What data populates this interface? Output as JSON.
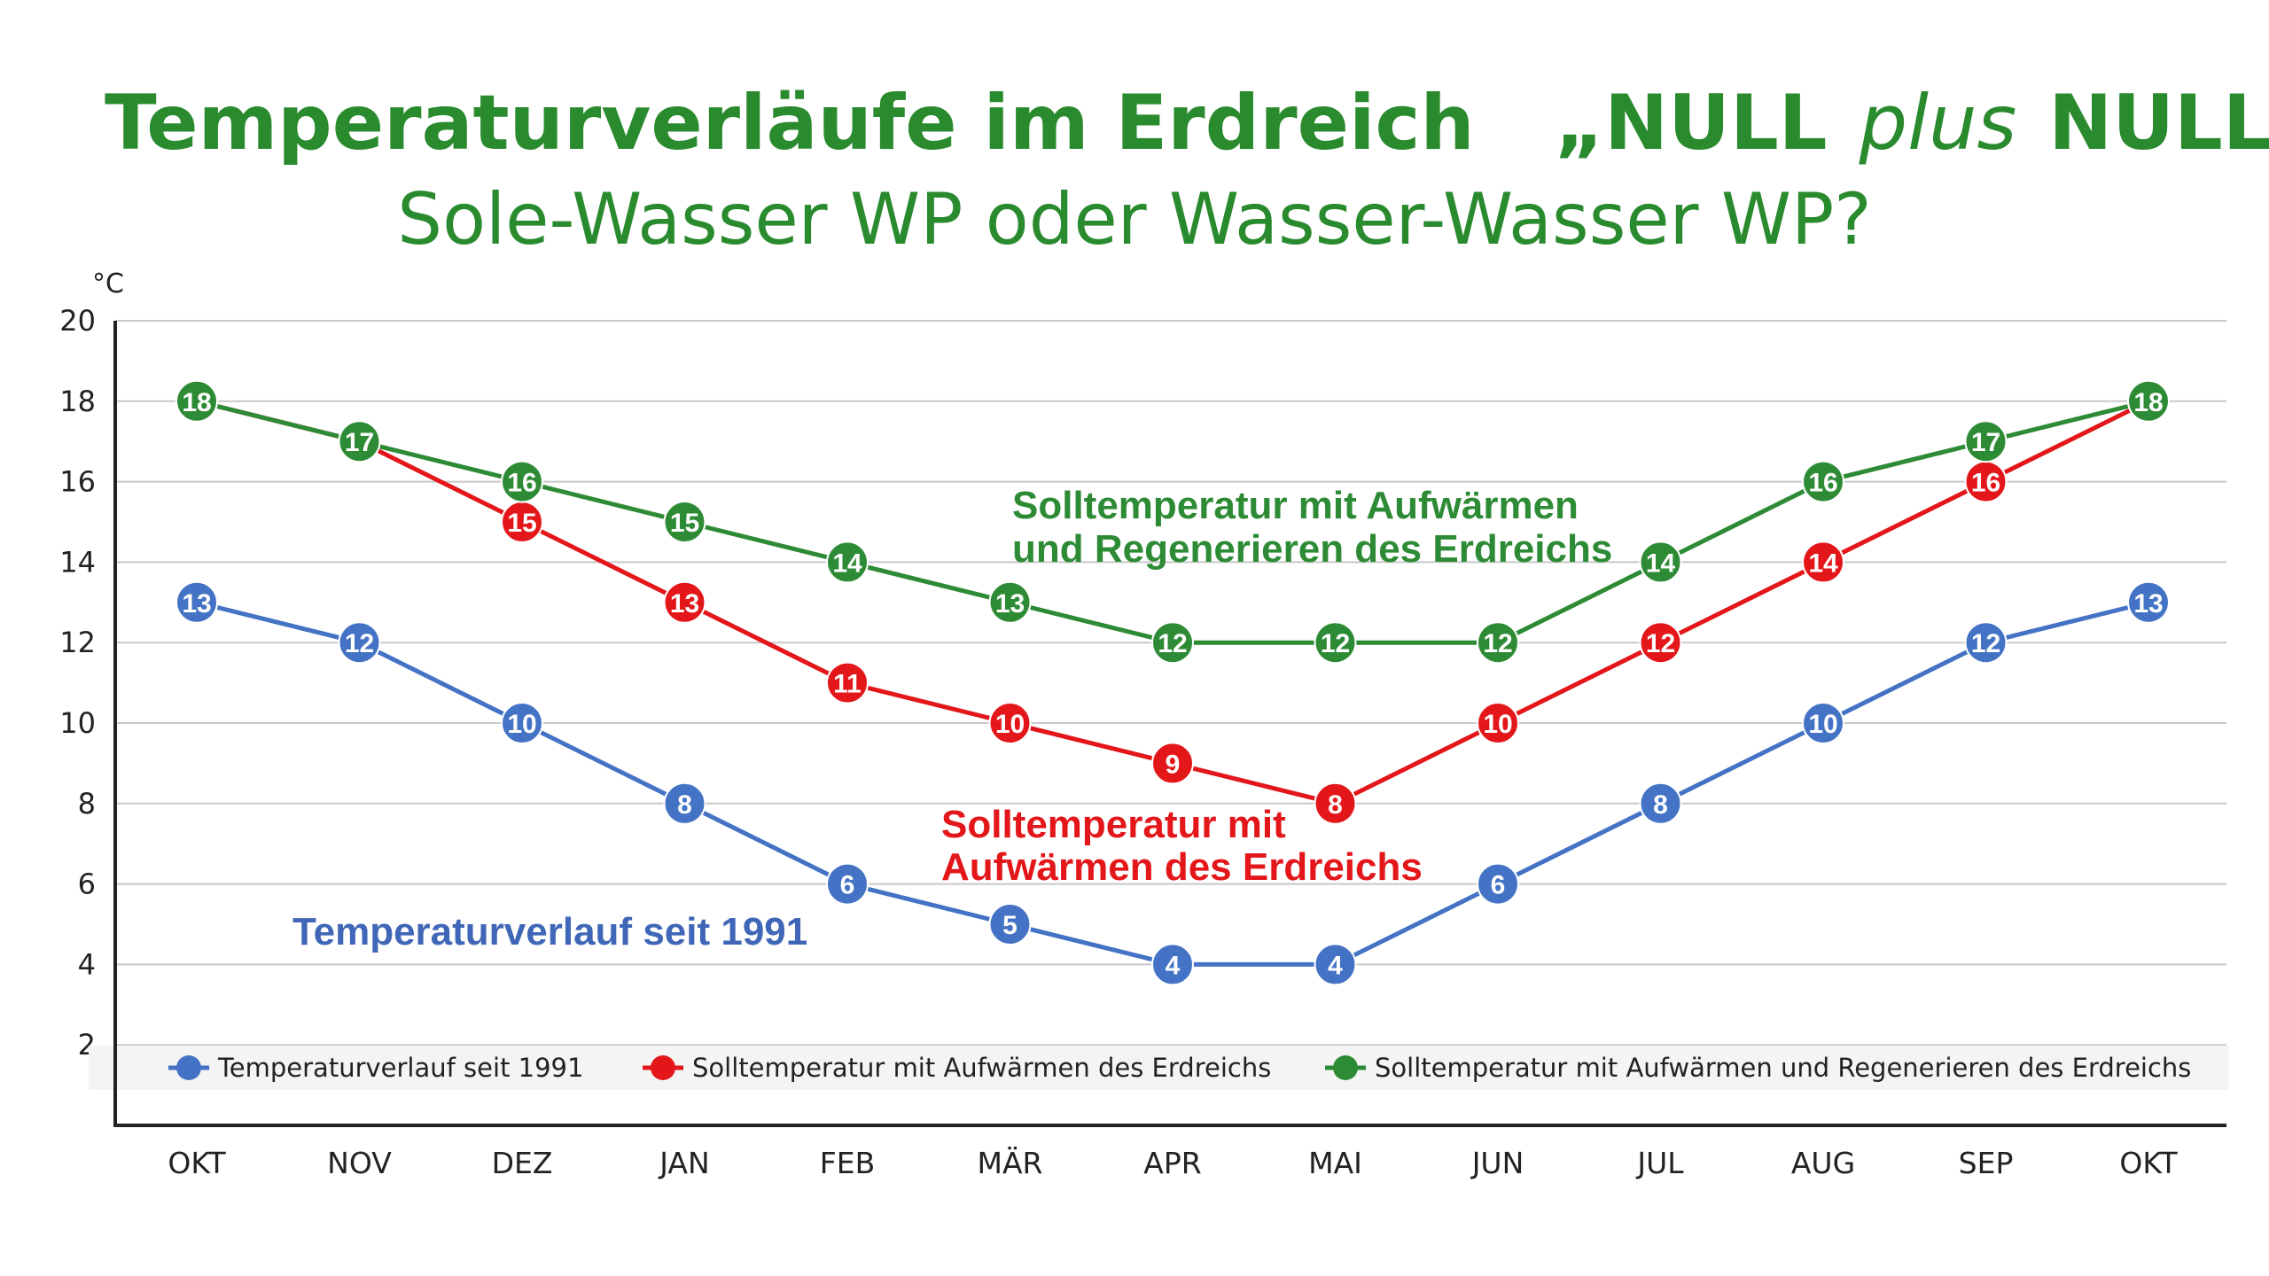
{
  "colors": {
    "title": "#2a8a2e",
    "series_blue": "#4472c4",
    "series_red": "#e3161a",
    "series_green": "#2e8b35",
    "annot_blue": "#4067b7",
    "annot_red": "#e3161a",
    "annot_green": "#2e8b35"
  },
  "header": {
    "title_main": "Temperaturverläufe im Erdreich",
    "title_brand_open": "„NULL",
    "title_brand_plus": "plus",
    "title_brand_close": "NULL“",
    "subtitle": "Sole-Wasser WP oder Wasser-Wasser WP?"
  },
  "annotations": {
    "green_line1": "Solltemperatur mit Aufwärmen",
    "green_line2": "und Regenerieren des Erdreichs",
    "red_line1": "Solltemperatur mit",
    "red_line2": "Aufwärmen des Erdreichs",
    "blue_line1": "Temperaturverlauf seit 1991"
  },
  "chart_data": {
    "type": "line",
    "title": "Temperaturverläufe im Erdreich „NULLplusNULL“",
    "subtitle": "Sole-Wasser WP oder Wasser-Wasser WP?",
    "xlabel": "",
    "ylabel": "°C",
    "ylim": [
      0,
      20
    ],
    "yticks": [
      2,
      4,
      6,
      8,
      10,
      12,
      14,
      16,
      18,
      20
    ],
    "grid": true,
    "legend_position": "bottom",
    "categories": [
      "OKT",
      "NOV",
      "DEZ",
      "JAN",
      "FEB",
      "MÄR",
      "APR",
      "MAI",
      "JUN",
      "JUL",
      "AUG",
      "SEP",
      "OKT"
    ],
    "series": [
      {
        "name": "Temperaturverlauf seit 1991",
        "color": "#4472c4",
        "values": [
          13,
          12,
          10,
          8,
          6,
          5,
          4,
          4,
          6,
          8,
          10,
          12,
          13
        ]
      },
      {
        "name": "Solltemperatur mit Aufwärmen des Erdreichs",
        "color": "#e3161a",
        "values": [
          18,
          17,
          15,
          13,
          11,
          10,
          9,
          8,
          10,
          12,
          14,
          16,
          18
        ]
      },
      {
        "name": "Solltemperatur mit Aufwärmen und Regenerieren des Erdreichs",
        "color": "#2e8b35",
        "values": [
          18,
          17,
          16,
          15,
          14,
          13,
          12,
          12,
          12,
          14,
          16,
          17,
          18
        ]
      }
    ]
  }
}
